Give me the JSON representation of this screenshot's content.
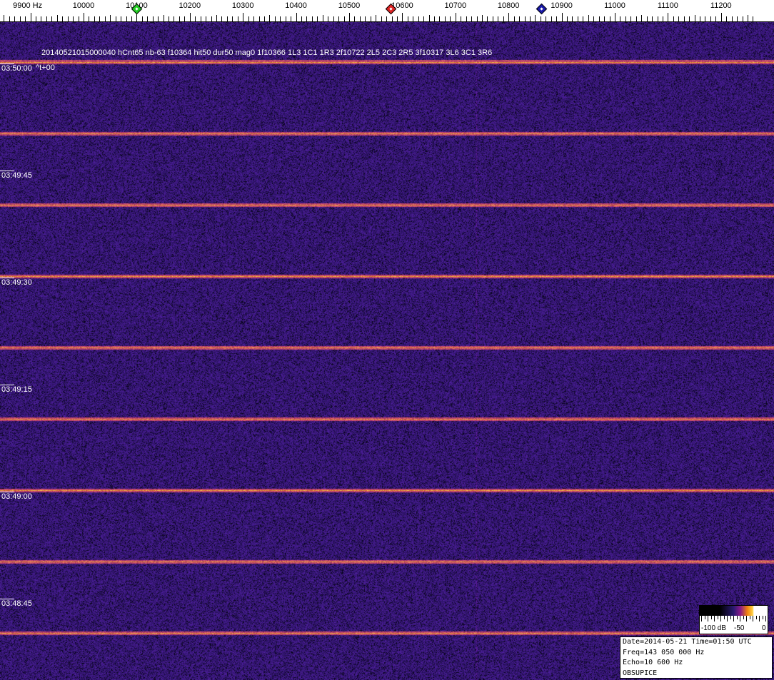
{
  "frequency_scale": {
    "unit": "Hz",
    "labels": [
      "9900 Hz",
      "10000",
      "10100",
      "10200",
      "10300",
      "10400",
      "10500",
      "10600",
      "10700",
      "10800",
      "10900",
      "11000",
      "11100",
      "11200"
    ],
    "label_values": [
      9900,
      10000,
      10100,
      10200,
      10300,
      10400,
      10500,
      10600,
      10700,
      10800,
      10900,
      11000,
      11100,
      11200
    ],
    "markers": [
      {
        "name": "green-marker",
        "freq": 10100,
        "color": "#22cc22"
      },
      {
        "name": "red-marker",
        "freq": 10578,
        "color": "#dd2222"
      },
      {
        "name": "blue-marker",
        "freq": 10861,
        "color": "#1a1aaa"
      }
    ]
  },
  "waterfall": {
    "info_line": "20140521015000040 hCnt65 nb-63 f10364 hit50 dur50 mag0 1f10366 1L3 1C1 1R3 2f10722 2L5 2C3 2R5 3f10317 3L6 3C1 3R6",
    "offset_label": "^t+00",
    "time_labels": [
      "03:50:00",
      "03:49:45",
      "03:49:30",
      "03:49:15",
      "03:49:00",
      "03:48:45"
    ],
    "colors": {
      "background": "#1a0f5a",
      "streak": "#f0a030"
    }
  },
  "color_bar": {
    "labels": [
      "-100 dB",
      "-50",
      "0"
    ]
  },
  "status": {
    "date_time": "Date=2014-05-21 Time=01:50 UTC",
    "freq": "Freq=143 050 000 Hz",
    "echo": "Echo=10 600 Hz",
    "station": "OBSUPICE"
  }
}
